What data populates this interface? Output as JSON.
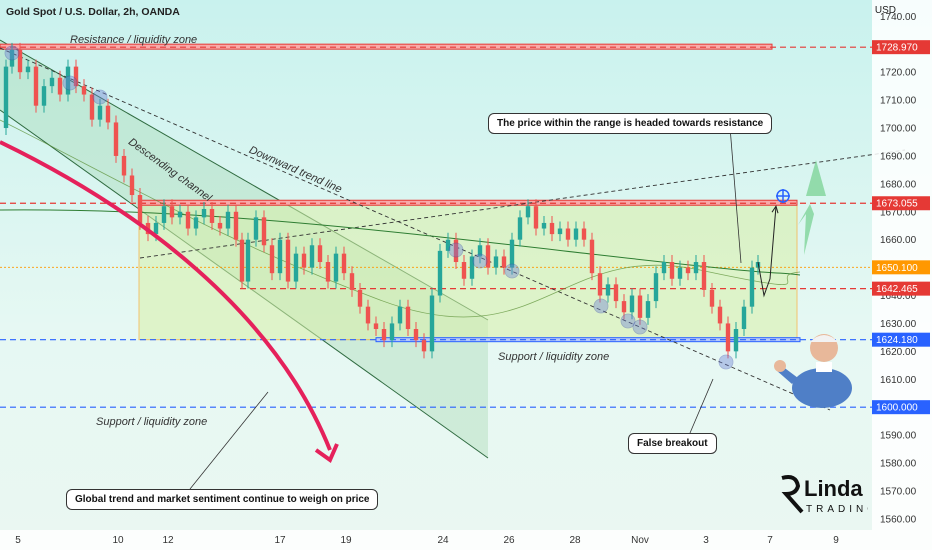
{
  "header": {
    "symbol": "Gold Spot / U.S. Dollar, 2h, OANDA",
    "currency": "USD"
  },
  "annotations": {
    "resistance_zone": "Resistance / liquidity zone",
    "descending_channel": "Descending channel",
    "downward_trend_line": "Downward trend line",
    "support_zone_1": "Support / liquidity zone",
    "support_zone_2": "Support / liquidity zone",
    "callout_top": "The price within the range is headed towards resistance",
    "callout_false": "False breakout",
    "callout_bottom": "Global trend and market sentiment continue to weigh on price"
  },
  "brand": {
    "name": "Linda",
    "sub": "TRADING"
  },
  "colors": {
    "bull": "#26a69a",
    "bear": "#ef5350",
    "red_line": "#e53935",
    "blue_line": "#2962ff",
    "range_fill": "#d9f0a8",
    "orange": "#ff9800"
  },
  "chart_data": {
    "type": "candlestick",
    "title": "Gold Spot / U.S. Dollar, 2h, OANDA",
    "ylabel": "USD",
    "ylim": [
      1556,
      1743
    ],
    "y_ticks": [
      1740,
      1730,
      1720,
      1710,
      1700,
      1690,
      1680,
      1670,
      1660,
      1650,
      1640,
      1630,
      1620,
      1610,
      1600,
      1590,
      1580,
      1570,
      1560
    ],
    "x_ticks": [
      "5",
      "10",
      "12",
      "17",
      "19",
      "24",
      "26",
      "28",
      "Nov",
      "3",
      "7",
      "9"
    ],
    "levels": [
      {
        "label": "1728.970",
        "value": 1728.97,
        "color": "#e53935"
      },
      {
        "label": "1673.055",
        "value": 1673.055,
        "color": "#e53935"
      },
      {
        "label": "1650.100",
        "value": 1650.1,
        "color": "#ff9800"
      },
      {
        "label": "1642.465",
        "value": 1642.465,
        "color": "#e53935"
      },
      {
        "label": "1624.180",
        "value": 1624.18,
        "color": "#2962ff"
      },
      {
        "label": "1600.000",
        "value": 1600.0,
        "color": "#2962ff"
      }
    ],
    "price_path": [
      [
        0,
        1700
      ],
      [
        6,
        1722
      ],
      [
        12,
        1728
      ],
      [
        20,
        1720
      ],
      [
        28,
        1722
      ],
      [
        36,
        1708
      ],
      [
        44,
        1715
      ],
      [
        52,
        1718
      ],
      [
        60,
        1712
      ],
      [
        68,
        1722
      ],
      [
        76,
        1715
      ],
      [
        84,
        1712
      ],
      [
        92,
        1703
      ],
      [
        100,
        1708
      ],
      [
        108,
        1702
      ],
      [
        116,
        1690
      ],
      [
        124,
        1683
      ],
      [
        132,
        1676
      ],
      [
        140,
        1666
      ],
      [
        148,
        1662
      ],
      [
        156,
        1666
      ],
      [
        164,
        1672
      ],
      [
        172,
        1668
      ],
      [
        180,
        1670
      ],
      [
        188,
        1664
      ],
      [
        196,
        1668
      ],
      [
        204,
        1671
      ],
      [
        212,
        1666
      ],
      [
        220,
        1664
      ],
      [
        228,
        1670
      ],
      [
        236,
        1660
      ],
      [
        242,
        1645
      ],
      [
        248,
        1660
      ],
      [
        256,
        1668
      ],
      [
        264,
        1658
      ],
      [
        272,
        1648
      ],
      [
        280,
        1660
      ],
      [
        288,
        1645
      ],
      [
        296,
        1655
      ],
      [
        304,
        1650
      ],
      [
        312,
        1658
      ],
      [
        320,
        1652
      ],
      [
        328,
        1645
      ],
      [
        336,
        1655
      ],
      [
        344,
        1648
      ],
      [
        352,
        1642
      ],
      [
        360,
        1636
      ],
      [
        368,
        1630
      ],
      [
        376,
        1628
      ],
      [
        384,
        1624
      ],
      [
        392,
        1630
      ],
      [
        400,
        1636
      ],
      [
        408,
        1628
      ],
      [
        416,
        1624
      ],
      [
        424,
        1620
      ],
      [
        432,
        1640
      ],
      [
        440,
        1656
      ],
      [
        448,
        1660
      ],
      [
        456,
        1652
      ],
      [
        464,
        1646
      ],
      [
        472,
        1654
      ],
      [
        480,
        1658
      ],
      [
        488,
        1650
      ],
      [
        496,
        1654
      ],
      [
        504,
        1650
      ],
      [
        512,
        1660
      ],
      [
        520,
        1668
      ],
      [
        528,
        1672
      ],
      [
        536,
        1664
      ],
      [
        544,
        1666
      ],
      [
        552,
        1662
      ],
      [
        560,
        1664
      ],
      [
        568,
        1660
      ],
      [
        576,
        1664
      ],
      [
        584,
        1660
      ],
      [
        592,
        1648
      ],
      [
        600,
        1640
      ],
      [
        608,
        1644
      ],
      [
        616,
        1638
      ],
      [
        624,
        1634
      ],
      [
        632,
        1640
      ],
      [
        640,
        1632
      ],
      [
        648,
        1638
      ],
      [
        656,
        1648
      ],
      [
        664,
        1652
      ],
      [
        672,
        1646
      ],
      [
        680,
        1650
      ],
      [
        688,
        1648
      ],
      [
        696,
        1652
      ],
      [
        704,
        1642
      ],
      [
        712,
        1636
      ],
      [
        720,
        1630
      ],
      [
        728,
        1620
      ],
      [
        736,
        1628
      ],
      [
        744,
        1636
      ],
      [
        752,
        1650
      ],
      [
        758,
        1652
      ]
    ],
    "forecast_path": [
      [
        758,
        1652
      ],
      [
        764,
        1640
      ],
      [
        770,
        1646
      ],
      [
        776,
        1672
      ]
    ]
  }
}
